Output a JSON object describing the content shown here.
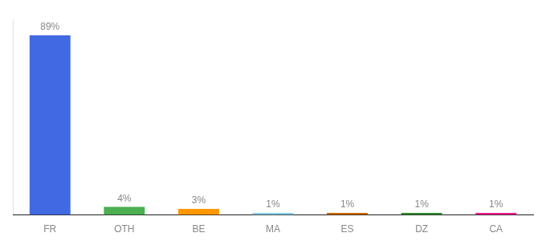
{
  "chart_data": {
    "type": "bar",
    "categories": [
      "FR",
      "OTH",
      "BE",
      "MA",
      "ES",
      "DZ",
      "CA"
    ],
    "values": [
      89,
      4,
      3,
      1,
      1,
      1,
      1
    ],
    "value_labels": [
      "89%",
      "4%",
      "3%",
      "1%",
      "1%",
      "1%",
      "1%"
    ],
    "colors": [
      "#4169e1",
      "#4caf50",
      "#ff9800",
      "#87ceeb",
      "#cd6600",
      "#2e8b2e",
      "#e91e8c"
    ],
    "ylim": [
      0,
      97
    ],
    "grid": false,
    "tick_labels": "x",
    "data_labels": true
  }
}
